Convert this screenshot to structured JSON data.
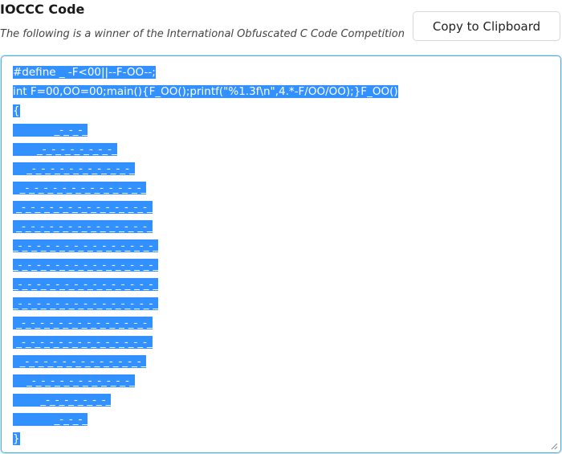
{
  "header": {
    "title": "IOCCC Code",
    "subtitle": "The following is a winner of the International Obfuscated C Code Competition"
  },
  "button": {
    "label": "Copy to Clipboard"
  },
  "code": {
    "lines": [
      "#define _ -F<00||--F-OO--;",
      "int F=00,OO=00;main(){F_OO();printf(\"%1.3f\\n\",4.*-F/OO/OO);}F_OO()",
      "{",
      "            _-_-_-_",
      "       _-_-_-_-_-_-_-_-_",
      "    _-_-_-_-_-_-_-_-_-_-_-_",
      "  _-_-_-_-_-_-_-_-_-_-_-_-_-_",
      " _-_-_-_-_-_-_-_-_-_-_-_-_-_-_",
      " _-_-_-_-_-_-_-_-_-_-_-_-_-_-_",
      "_-_-_-_-_-_-_-_-_-_-_-_-_-_-_-_",
      "_-_-_-_-_-_-_-_-_-_-_-_-_-_-_-_",
      "_-_-_-_-_-_-_-_-_-_-_-_-_-_-_-_",
      "_-_-_-_-_-_-_-_-_-_-_-_-_-_-_-_",
      " _-_-_-_-_-_-_-_-_-_-_-_-_-_-_",
      " _-_-_-_-_-_-_-_-_-_-_-_-_-_-_",
      "  _-_-_-_-_-_-_-_-_-_-_-_-_-_",
      "    _-_-_-_-_-_-_-_-_-_-_-_",
      "        _-_-_-_-_-_-_-_",
      "            _-_-_-_",
      "}"
    ]
  }
}
